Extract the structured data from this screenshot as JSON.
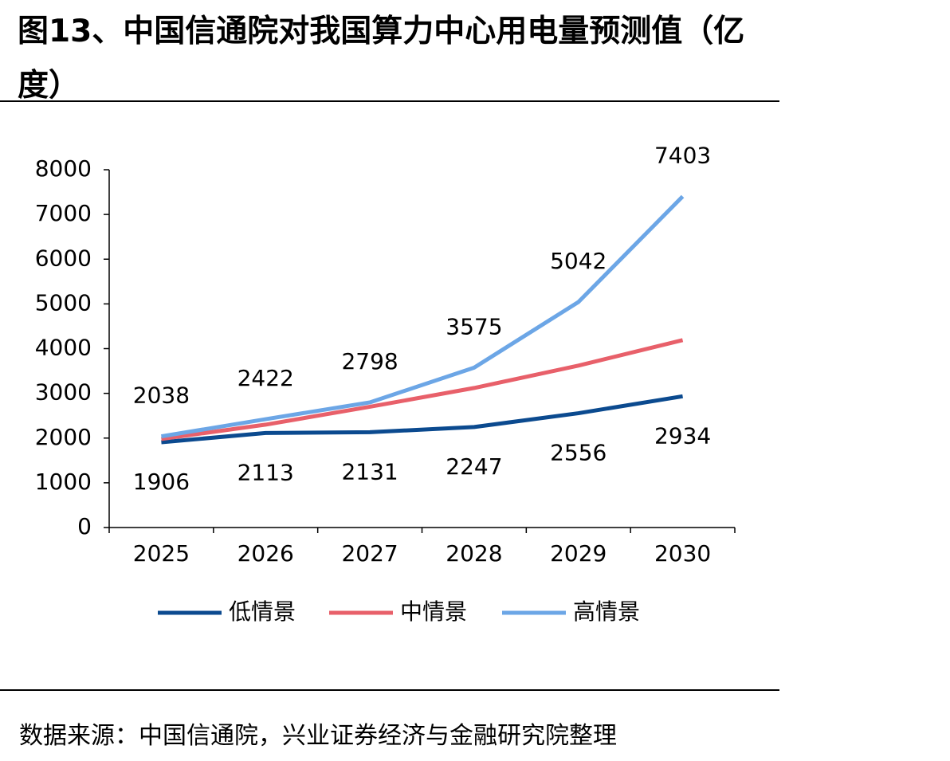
{
  "chart_data": {
    "type": "line",
    "title": "图13、中国信通院对我国算力中心用电量预测值（亿度）",
    "source": "数据来源：中国信通院，兴业证券经济与金融研究院整理",
    "categories": [
      "2025",
      "2026",
      "2027",
      "2028",
      "2029",
      "2030"
    ],
    "series": [
      {
        "name": "低情景",
        "color": "#0b4a8f",
        "values": [
          1906,
          2113,
          2131,
          2247,
          2556,
          2934
        ],
        "labels": "below"
      },
      {
        "name": "中情景",
        "color": "#e8606a",
        "values": [
          1980,
          2300,
          2700,
          3120,
          3620,
          4190
        ]
      },
      {
        "name": "高情景",
        "color": "#6ca6e6",
        "values": [
          2038,
          2422,
          2798,
          3575,
          5042,
          7403
        ],
        "labels": "above"
      }
    ],
    "ylim": [
      0,
      8000
    ],
    "yticks": [
      0,
      1000,
      2000,
      3000,
      4000,
      5000,
      6000,
      7000,
      8000
    ],
    "legend": "bottom"
  }
}
